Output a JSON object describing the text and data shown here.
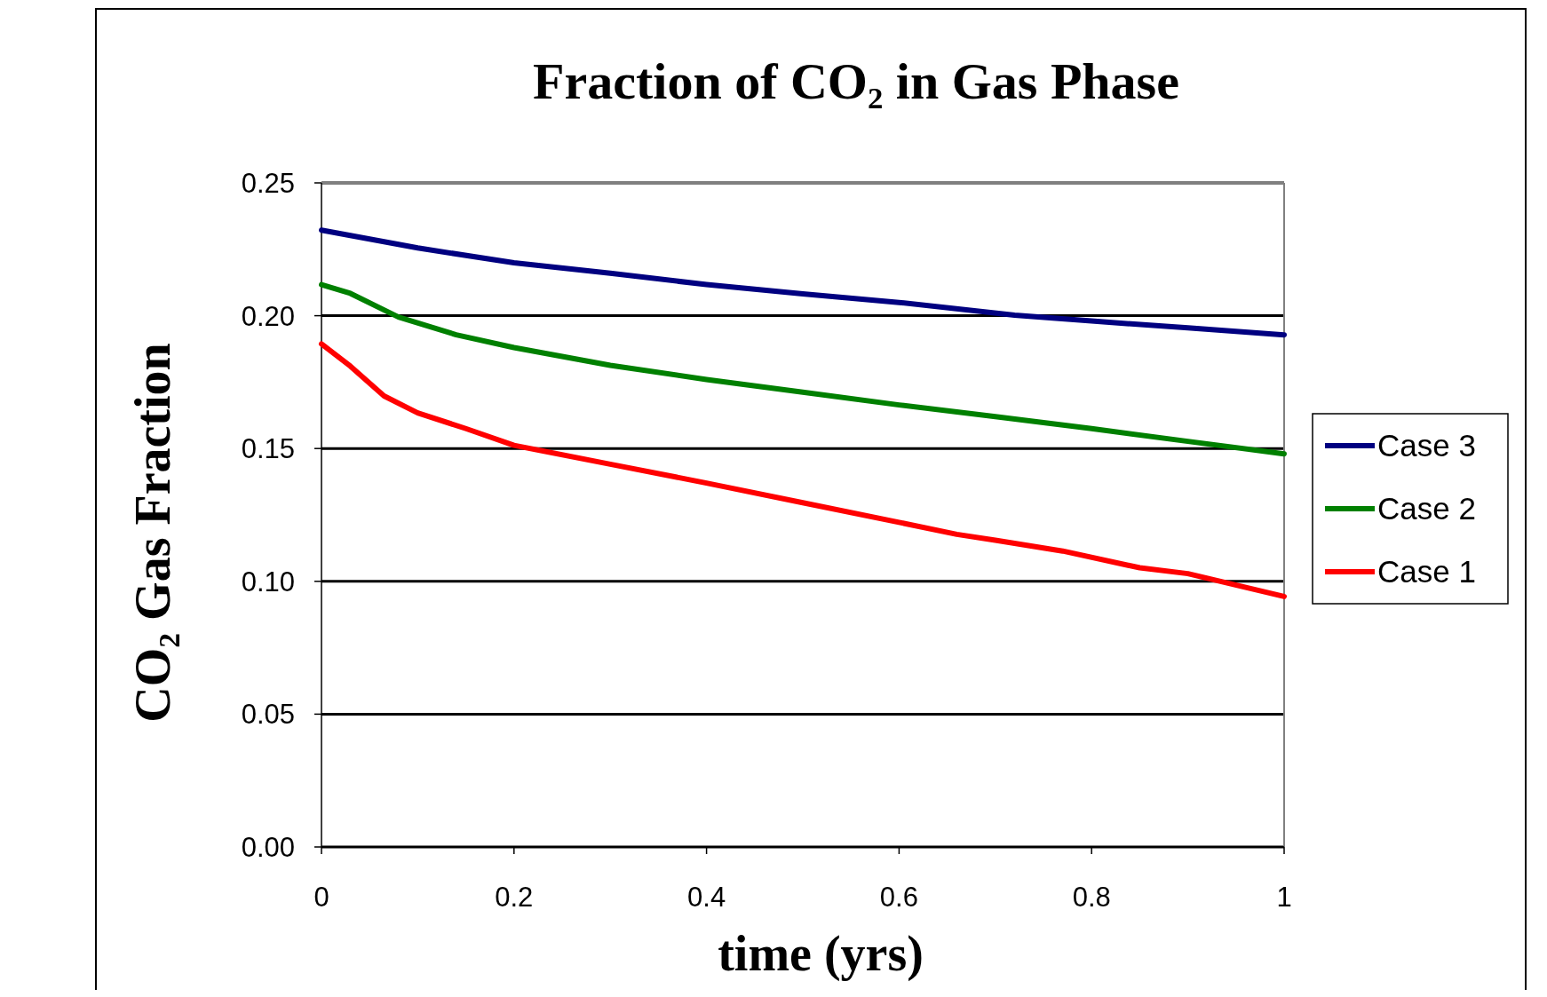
{
  "chart_data": {
    "type": "line",
    "title": "Fraction of CO₂ in Gas Phase",
    "xlabel": "time (yrs)",
    "ylabel": "CO₂ Gas Fraction",
    "xlim": [
      0,
      1
    ],
    "xticks": [
      0,
      0.2,
      0.4,
      0.6,
      0.8,
      1
    ],
    "ylim": [
      0,
      0.25
    ],
    "yticks": [
      {
        "value": 0,
        "label": "0.00"
      },
      {
        "value": 0.05,
        "label": "0.05"
      },
      {
        "value": 0.1,
        "label": "0.10"
      },
      {
        "value": 0.15,
        "label": "0.15"
      },
      {
        "value": 0.2,
        "label": "0.20"
      },
      {
        "value": 0.25,
        "label": "0.25"
      }
    ],
    "grid": "y",
    "legend": "right",
    "marker": "none",
    "line_style": "solid",
    "series": [
      {
        "name": "Case 3",
        "color": "#000080",
        "x": [
          0,
          0.1,
          0.2,
          0.3,
          0.4,
          0.5,
          0.6,
          0.72,
          0.8,
          0.9,
          1
        ],
        "values": [
          0.2322,
          0.2255,
          0.2199,
          0.216,
          0.2117,
          0.2082,
          0.205,
          0.2002,
          0.198,
          0.1954,
          0.1928
        ]
      },
      {
        "name": "Case 2",
        "color": "#008000",
        "x": [
          0,
          0.03,
          0.08,
          0.14,
          0.2,
          0.3,
          0.4,
          0.5,
          0.6,
          0.7,
          0.8,
          0.9,
          1
        ],
        "values": [
          0.2117,
          0.2084,
          0.1995,
          0.1928,
          0.188,
          0.1813,
          0.176,
          0.1712,
          0.1664,
          0.162,
          0.1575,
          0.1527,
          0.148
        ]
      },
      {
        "name": "Case 1",
        "color": "#ff0000",
        "x": [
          0,
          0.03,
          0.065,
          0.1,
          0.15,
          0.2,
          0.3,
          0.4,
          0.5,
          0.6,
          0.66,
          0.7,
          0.77,
          0.85,
          0.9,
          1
        ],
        "values": [
          0.1894,
          0.181,
          0.1698,
          0.1634,
          0.1575,
          0.1512,
          0.1441,
          0.137,
          0.1296,
          0.1222,
          0.1177,
          0.1155,
          0.1114,
          0.1051,
          0.1029,
          0.0943
        ]
      }
    ]
  }
}
